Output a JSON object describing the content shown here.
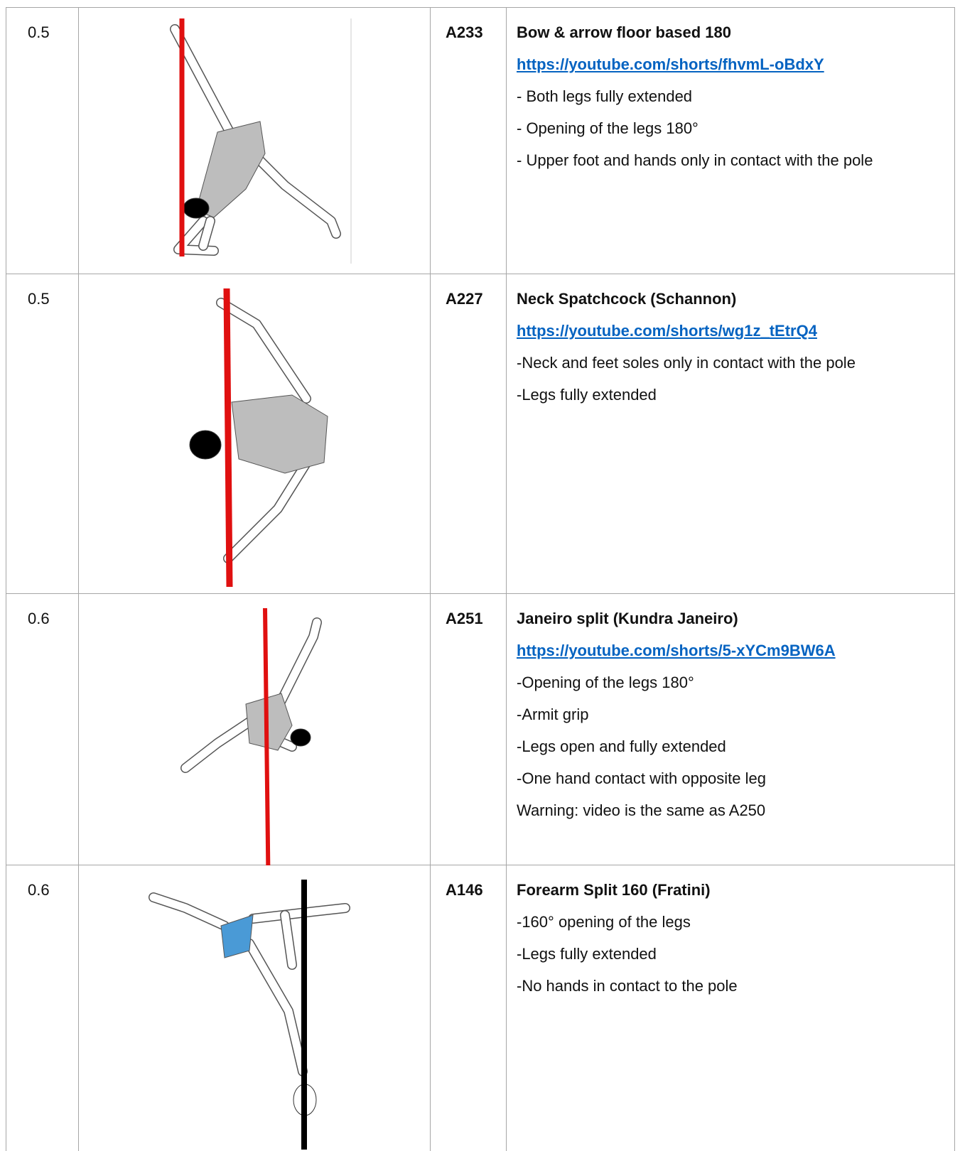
{
  "table": {
    "rows": [
      {
        "value": 0.5,
        "code": "A233",
        "title": "Bow & arrow floor based 180",
        "link": "https://youtube.com/shorts/fhvmL-oBdxY",
        "lines": [
          "- Both legs fully extended",
          "- Opening of the legs 180°",
          "- Upper foot and hands only in contact with the pole"
        ]
      },
      {
        "value": 0.5,
        "code": "A227",
        "title": "Neck Spatchcock  (Schannon)",
        "link": "https://youtube.com/shorts/wg1z_tEtrQ4",
        "lines": [
          "-Neck and feet soles only in contact with the pole",
          "-Legs fully extended"
        ]
      },
      {
        "value": 0.6,
        "code": "A251",
        "title": "Janeiro split (Kundra Janeiro)",
        "link": "https://youtube.com/shorts/5-xYCm9BW6A",
        "lines": [
          "-Opening of the legs 180°",
          "-Armit grip",
          "-Legs open and fully extended",
          "-One hand contact with opposite leg"
        ],
        "note": "Warning: video is the same as A250"
      },
      {
        "value": 0.6,
        "code": "A146",
        "title": "Forearm Split 160 (Fratini)",
        "lines": [
          "-160° opening of the legs",
          "-Legs fully extended",
          "-No hands in contact to the pole"
        ]
      }
    ]
  }
}
